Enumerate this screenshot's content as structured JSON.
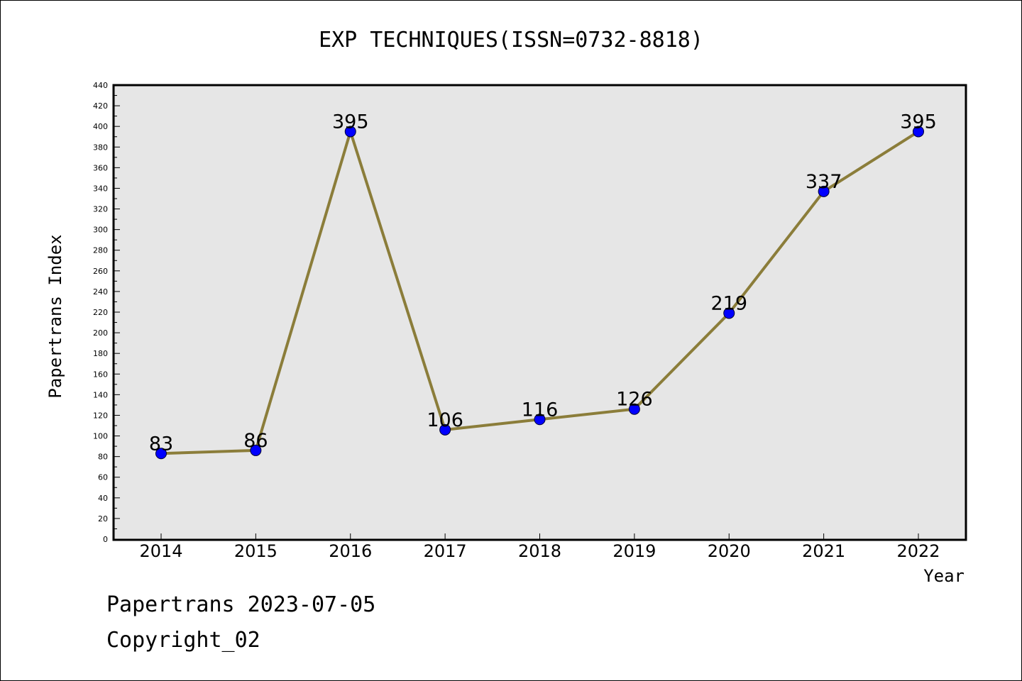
{
  "chart_data": {
    "type": "line",
    "title": "EXP TECHNIQUES(ISSN=0732-8818)",
    "xlabel": "Year",
    "ylabel": "Papertrans Index",
    "categories": [
      "2014",
      "2015",
      "2016",
      "2017",
      "2018",
      "2019",
      "2020",
      "2021",
      "2022"
    ],
    "series": [
      {
        "values": [
          83,
          86,
          395,
          106,
          116,
          126,
          219,
          337,
          395
        ]
      }
    ],
    "data_labels": [
      "83",
      "86",
      "395",
      "106",
      "116",
      "126",
      "219",
      "337",
      "395"
    ],
    "ylim": [
      0,
      440
    ],
    "yticks": [
      "0",
      "20",
      "40",
      "60",
      "80",
      "100",
      "120",
      "140",
      "160",
      "180",
      "200",
      "220",
      "240",
      "260",
      "280",
      "300",
      "320",
      "340",
      "360",
      "380",
      "400",
      "420",
      "440"
    ],
    "grid": false,
    "colors": {
      "line": "#8B7D3A",
      "marker": "#0000FF",
      "plot_background": "#E6E6E6",
      "frame": "#000000"
    }
  },
  "footer": {
    "date_line": "Papertrans 2023-07-05",
    "copyright_line": "Copyright_02"
  }
}
